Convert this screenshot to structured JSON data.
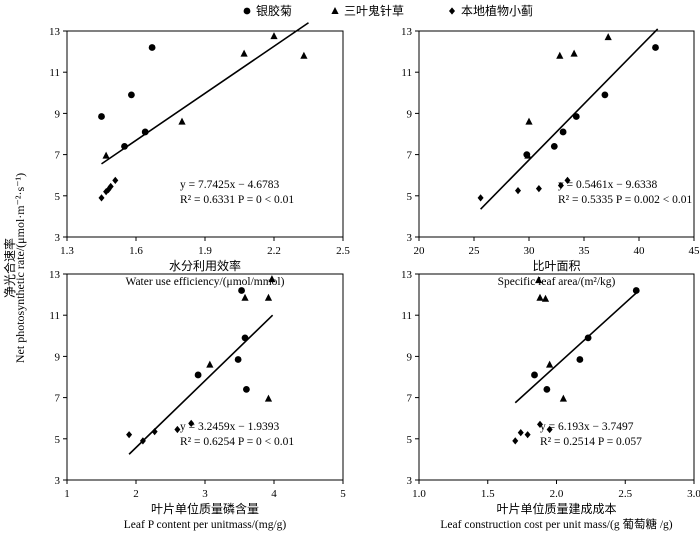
{
  "legend": [
    {
      "symbol": "circle",
      "label": "银胶菊",
      "icon": "filled-circle-icon"
    },
    {
      "symbol": "triangle",
      "label": "三叶鬼针草",
      "icon": "filled-triangle-icon"
    },
    {
      "symbol": "diamond",
      "label": "本地植物小蓟",
      "icon": "filled-diamond-icon"
    }
  ],
  "y_label": "Net photosynthetic rate/(μmol·m⁻²·s⁻¹)",
  "y_label_cn": "净光合速率",
  "chart_data": [
    {
      "type": "scatter",
      "xlabel_cn": "水分利用效率",
      "xlabel_en": "Water use efficiency/(μmol/mmol)",
      "xlim": [
        1.3,
        2.5
      ],
      "xticks": [
        "1.3",
        "1.6",
        "1.9",
        "2.2",
        "2.5"
      ],
      "ylim": [
        3,
        13
      ],
      "yticks": [
        "3",
        "5",
        "7",
        "9",
        "11",
        "13"
      ],
      "series": [
        {
          "symbol": "circle",
          "points": [
            [
              1.45,
              8.85
            ],
            [
              1.58,
              9.9
            ],
            [
              1.67,
              12.2
            ],
            [
              1.55,
              7.4
            ],
            [
              1.64,
              8.1
            ]
          ]
        },
        {
          "symbol": "triangle",
          "points": [
            [
              1.47,
              6.95
            ],
            [
              1.8,
              8.6
            ],
            [
              2.07,
              11.9
            ],
            [
              2.2,
              12.75
            ],
            [
              2.33,
              11.8
            ]
          ]
        },
        {
          "symbol": "diamond",
          "points": [
            [
              1.45,
              4.9
            ],
            [
              1.47,
              5.2
            ],
            [
              1.48,
              5.3
            ],
            [
              1.49,
              5.45
            ],
            [
              1.51,
              5.75
            ]
          ]
        }
      ],
      "fit_line": {
        "x": [
          1.45,
          2.35
        ],
        "y": [
          6.55,
          13.4
        ]
      },
      "equation": "y = 7.7425x − 4.6783",
      "r2": "R² = 0.6331",
      "p": "P = 0 < 0.01"
    },
    {
      "type": "scatter",
      "xlabel_cn": "比叶面积",
      "xlabel_en": "Specific leaf area/(m²/kg)",
      "xlim": [
        20,
        45
      ],
      "xticks": [
        "20",
        "25",
        "30",
        "35",
        "40",
        "45"
      ],
      "ylim": [
        3,
        13
      ],
      "yticks": [
        "3",
        "5",
        "7",
        "9",
        "11",
        "13"
      ],
      "series": [
        {
          "symbol": "circle",
          "points": [
            [
              29.8,
              7.0
            ],
            [
              32.3,
              7.4
            ],
            [
              33.1,
              8.1
            ],
            [
              34.3,
              8.85
            ],
            [
              36.9,
              9.9
            ],
            [
              41.5,
              12.2
            ]
          ]
        },
        {
          "symbol": "triangle",
          "points": [
            [
              30.0,
              8.6
            ],
            [
              32.8,
              11.8
            ],
            [
              34.1,
              11.9
            ],
            [
              37.2,
              12.7
            ],
            [
              29.9,
              6.95
            ]
          ]
        },
        {
          "symbol": "diamond",
          "points": [
            [
              25.6,
              4.9
            ],
            [
              29.0,
              5.25
            ],
            [
              30.9,
              5.35
            ],
            [
              32.9,
              5.5
            ],
            [
              33.5,
              5.75
            ]
          ]
        }
      ],
      "fit_line": {
        "x": [
          25.6,
          41.7
        ],
        "y": [
          4.35,
          13.1
        ]
      },
      "equation": "y = 0.5461x − 9.6338",
      "r2": "R² = 0.5335",
      "p": "P = 0.002 < 0.01"
    },
    {
      "type": "scatter",
      "xlabel_cn": "叶片单位质量磷含量",
      "xlabel_en": "Leaf P content per unitmass/(mg/g)",
      "xlim": [
        1,
        5
      ],
      "xticks": [
        "1",
        "2",
        "3",
        "4",
        "5"
      ],
      "ylim": [
        3,
        13
      ],
      "yticks": [
        "3",
        "5",
        "7",
        "9",
        "11",
        "13"
      ],
      "series": [
        {
          "symbol": "circle",
          "points": [
            [
              2.9,
              8.1
            ],
            [
              3.48,
              8.85
            ],
            [
              3.58,
              9.9
            ],
            [
              3.6,
              7.4
            ],
            [
              3.53,
              12.2
            ]
          ]
        },
        {
          "symbol": "triangle",
          "points": [
            [
              3.07,
              8.6
            ],
            [
              3.58,
              11.85
            ],
            [
              3.92,
              11.85
            ],
            [
              3.97,
              12.75
            ],
            [
              3.92,
              6.95
            ]
          ]
        },
        {
          "symbol": "diamond",
          "points": [
            [
              1.9,
              5.2
            ],
            [
              2.1,
              4.9
            ],
            [
              2.27,
              5.35
            ],
            [
              2.6,
              5.45
            ],
            [
              2.8,
              5.75
            ]
          ]
        }
      ],
      "fit_line": {
        "x": [
          1.9,
          3.98
        ],
        "y": [
          4.25,
          11.0
        ]
      },
      "equation": "y = 3.2459x − 1.9393",
      "r2": "R² = 0.6254",
      "p": "P = 0 < 0.01"
    },
    {
      "type": "scatter",
      "xlabel_cn": "叶片单位质量建成成本",
      "xlabel_en": "Leaf construction cost per unit mass/(g 葡萄糖 /g)",
      "xlim": [
        1.0,
        3.0
      ],
      "xticks": [
        "1.0",
        "1.5",
        "2.0",
        "2.5",
        "3.0"
      ],
      "ylim": [
        3,
        13
      ],
      "yticks": [
        "3",
        "5",
        "7",
        "9",
        "11",
        "13"
      ],
      "series": [
        {
          "symbol": "circle",
          "points": [
            [
              1.84,
              8.1
            ],
            [
              1.93,
              7.4
            ],
            [
              2.17,
              8.85
            ],
            [
              2.23,
              9.9
            ],
            [
              2.58,
              12.2
            ]
          ]
        },
        {
          "symbol": "triangle",
          "points": [
            [
              1.87,
              12.7
            ],
            [
              1.88,
              11.85
            ],
            [
              1.92,
              11.8
            ],
            [
              1.95,
              8.6
            ],
            [
              2.05,
              6.95
            ]
          ]
        },
        {
          "symbol": "diamond",
          "points": [
            [
              1.7,
              4.9
            ],
            [
              1.74,
              5.3
            ],
            [
              1.79,
              5.2
            ],
            [
              1.88,
              5.7
            ],
            [
              1.95,
              5.45
            ]
          ]
        }
      ],
      "fit_line": {
        "x": [
          1.7,
          2.6
        ],
        "y": [
          6.75,
          12.2
        ]
      },
      "equation": "y = 6.193x − 3.7497",
      "r2": "R² = 0.2514",
      "p": "P = 0.057"
    }
  ]
}
